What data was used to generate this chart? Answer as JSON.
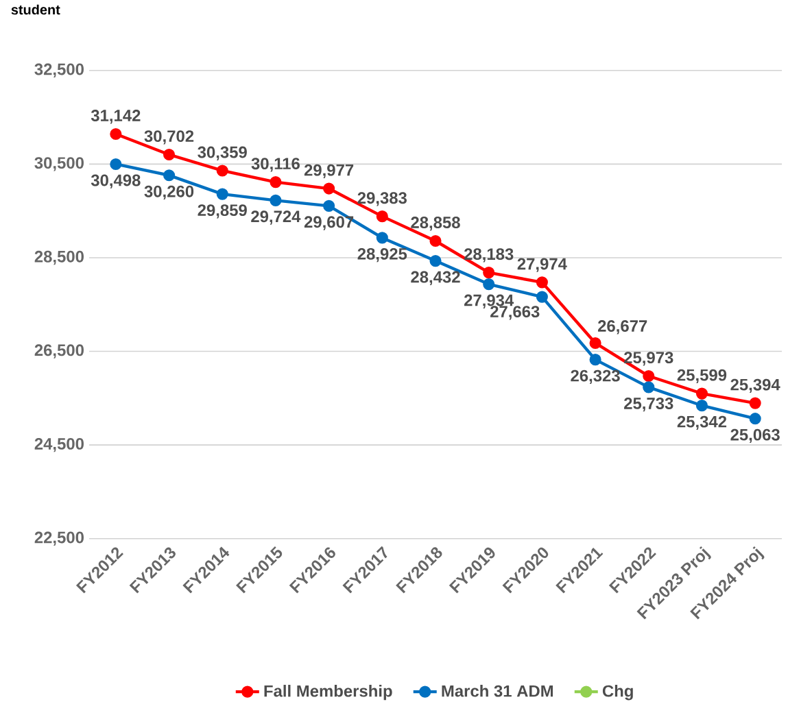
{
  "chart_data": {
    "type": "line",
    "ylabel": "student",
    "categories": [
      "FY2012",
      "FY2013",
      "FY2014",
      "FY2015",
      "FY2016",
      "FY2017",
      "FY2018",
      "FY2019",
      "FY2020",
      "FY2021",
      "FY2022",
      "FY2023 Proj",
      "FY2024 Proj"
    ],
    "series": [
      {
        "name": "Fall Membership",
        "color": "#ff0000",
        "values": [
          31142,
          30702,
          30359,
          30116,
          29977,
          29383,
          28858,
          28183,
          27974,
          26677,
          25973,
          25599,
          25394
        ],
        "value_labels": [
          "31,142",
          "30,702",
          "30,359",
          "30,116",
          "29,977",
          "29,383",
          "28,858",
          "28,183",
          "27,974",
          "26,677",
          "25,973",
          "25,599",
          "25,394"
        ]
      },
      {
        "name": "March 31 ADM",
        "color": "#0070c0",
        "values": [
          30498,
          30260,
          29859,
          29724,
          29607,
          28925,
          28432,
          27934,
          27663,
          26323,
          25733,
          25342,
          25063
        ],
        "value_labels": [
          "30,498",
          "30,260",
          "29,859",
          "29,724",
          "29,607",
          "28,925",
          "28,432",
          "27,934",
          "27,663",
          "26,323",
          "25,733",
          "25,342",
          "25,063"
        ]
      },
      {
        "name": "Chg",
        "color": "#92d050",
        "values": [
          null,
          null,
          null,
          null,
          null,
          null,
          null,
          null,
          null,
          null,
          null,
          null,
          null
        ]
      }
    ],
    "ylim": [
      22500,
      32500
    ],
    "yticks": [
      {
        "value": 22500,
        "label": "22,500"
      },
      {
        "value": 24500,
        "label": "24,500"
      },
      {
        "value": 26500,
        "label": "26,500"
      },
      {
        "value": 28500,
        "label": "28,500"
      },
      {
        "value": 30500,
        "label": "30,500"
      },
      {
        "value": 32500,
        "label": "32,500"
      }
    ],
    "grid": "y",
    "legend": "bottom",
    "marker": "circle",
    "line_style": "solid"
  }
}
